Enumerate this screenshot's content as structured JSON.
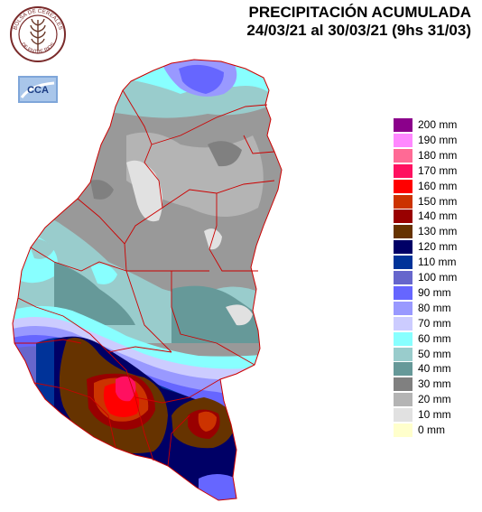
{
  "header": {
    "title": "PRECIPITACIÓN ACUMULADA",
    "period": "24/03/21 al 30/03/21 (9hs 31/03)"
  },
  "logos": {
    "seal_text": "BOLSA DE CEREALES DE ENTRE RIOS",
    "cca_text": "CCA"
  },
  "legend": {
    "items": [
      {
        "label": "200 mm",
        "color": "#8b008b"
      },
      {
        "label": "190 mm",
        "color": "#ff88ff"
      },
      {
        "label": "180 mm",
        "color": "#ff6a95"
      },
      {
        "label": "170 mm",
        "color": "#ff1060"
      },
      {
        "label": "160 mm",
        "color": "#ff0000"
      },
      {
        "label": "150 mm",
        "color": "#cc3300"
      },
      {
        "label": "140 mm",
        "color": "#990000"
      },
      {
        "label": "130 mm",
        "color": "#663300"
      },
      {
        "label": "120 mm",
        "color": "#000066"
      },
      {
        "label": "110 mm",
        "color": "#003399"
      },
      {
        "label": "100 mm",
        "color": "#6666cc"
      },
      {
        "label": "90 mm",
        "color": "#6666ff"
      },
      {
        "label": "80 mm",
        "color": "#9999ff"
      },
      {
        "label": "70 mm",
        "color": "#ccccff"
      },
      {
        "label": "60 mm",
        "color": "#88ffff"
      },
      {
        "label": "50 mm",
        "color": "#99cccc"
      },
      {
        "label": "40 mm",
        "color": "#669999"
      },
      {
        "label": "30 mm",
        "color": "#808080"
      },
      {
        "label": "20 mm",
        "color": "#b4b4b4"
      },
      {
        "label": "10 mm",
        "color": "#e1e1e1"
      },
      {
        "label": "0 mm",
        "color": "#ffffcc"
      }
    ]
  }
}
